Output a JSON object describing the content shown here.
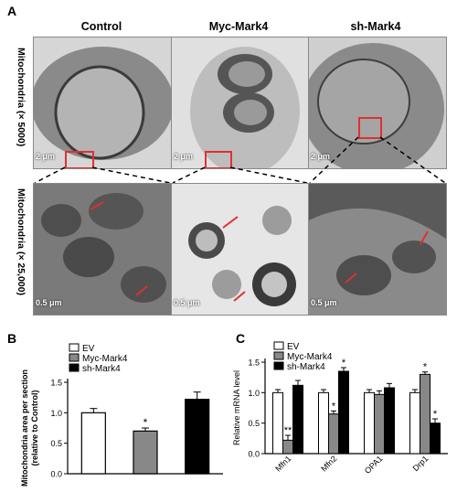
{
  "panels": {
    "a": "A",
    "b": "B",
    "c": "C"
  },
  "panel_a": {
    "columns": [
      "Control",
      "Myc-Mark4",
      "sh-Mark4"
    ],
    "row_labels": [
      "Mitochondria (× 5000)",
      "Mitochondria (× 25,000)"
    ],
    "scale_top": "2 μm",
    "scale_bottom": "0.5 μm"
  },
  "chart_data": [
    {
      "type": "bar",
      "panel": "B",
      "categories": [
        "EV",
        "Myc-Mark4",
        "sh-Mark4"
      ],
      "values": [
        1.0,
        0.7,
        1.22
      ],
      "errors": [
        0.07,
        0.05,
        0.12
      ],
      "colors": [
        "#ffffff",
        "#888888",
        "#000000"
      ],
      "ylabel": "Mitochondria area per section (relative to Control)",
      "ylim": [
        0.0,
        1.5
      ],
      "yticks": [
        "0.0",
        "0.5",
        "1.0",
        "1.5"
      ],
      "legend": [
        "EV",
        "Myc-Mark4",
        "sh-Mark4"
      ],
      "annotations": [
        {
          "category": "Myc-Mark4",
          "text": "*"
        }
      ]
    },
    {
      "type": "bar",
      "panel": "C",
      "categories": [
        "Mfn1",
        "Mfn2",
        "OPA1",
        "Drp1"
      ],
      "series": [
        {
          "name": "EV",
          "values": [
            1.0,
            1.0,
            1.0,
            1.0
          ],
          "errors": [
            0.05,
            0.05,
            0.05,
            0.05
          ],
          "color": "#ffffff"
        },
        {
          "name": "Myc-Mark4",
          "values": [
            0.22,
            0.65,
            0.97,
            1.3
          ],
          "errors": [
            0.08,
            0.05,
            0.06,
            0.04
          ],
          "color": "#888888"
        },
        {
          "name": "sh-Mark4",
          "values": [
            1.12,
            1.35,
            1.08,
            0.5
          ],
          "errors": [
            0.08,
            0.06,
            0.07,
            0.07
          ],
          "color": "#000000"
        }
      ],
      "ylabel": "Relative mRNA level",
      "ylim": [
        0.0,
        1.5
      ],
      "yticks": [
        "0.0",
        "0.5",
        "1.0",
        "1.5"
      ],
      "legend": [
        "EV",
        "Myc-Mark4",
        "sh-Mark4"
      ],
      "annotations": [
        {
          "category": "Mfn1",
          "series": "Myc-Mark4",
          "text": "**"
        },
        {
          "category": "Mfn2",
          "series": "Myc-Mark4",
          "text": "*"
        },
        {
          "category": "Mfn2",
          "series": "sh-Mark4",
          "text": "*"
        },
        {
          "category": "Drp1",
          "series": "Myc-Mark4",
          "text": "*"
        },
        {
          "category": "Drp1",
          "series": "sh-Mark4",
          "text": "*"
        }
      ]
    }
  ]
}
